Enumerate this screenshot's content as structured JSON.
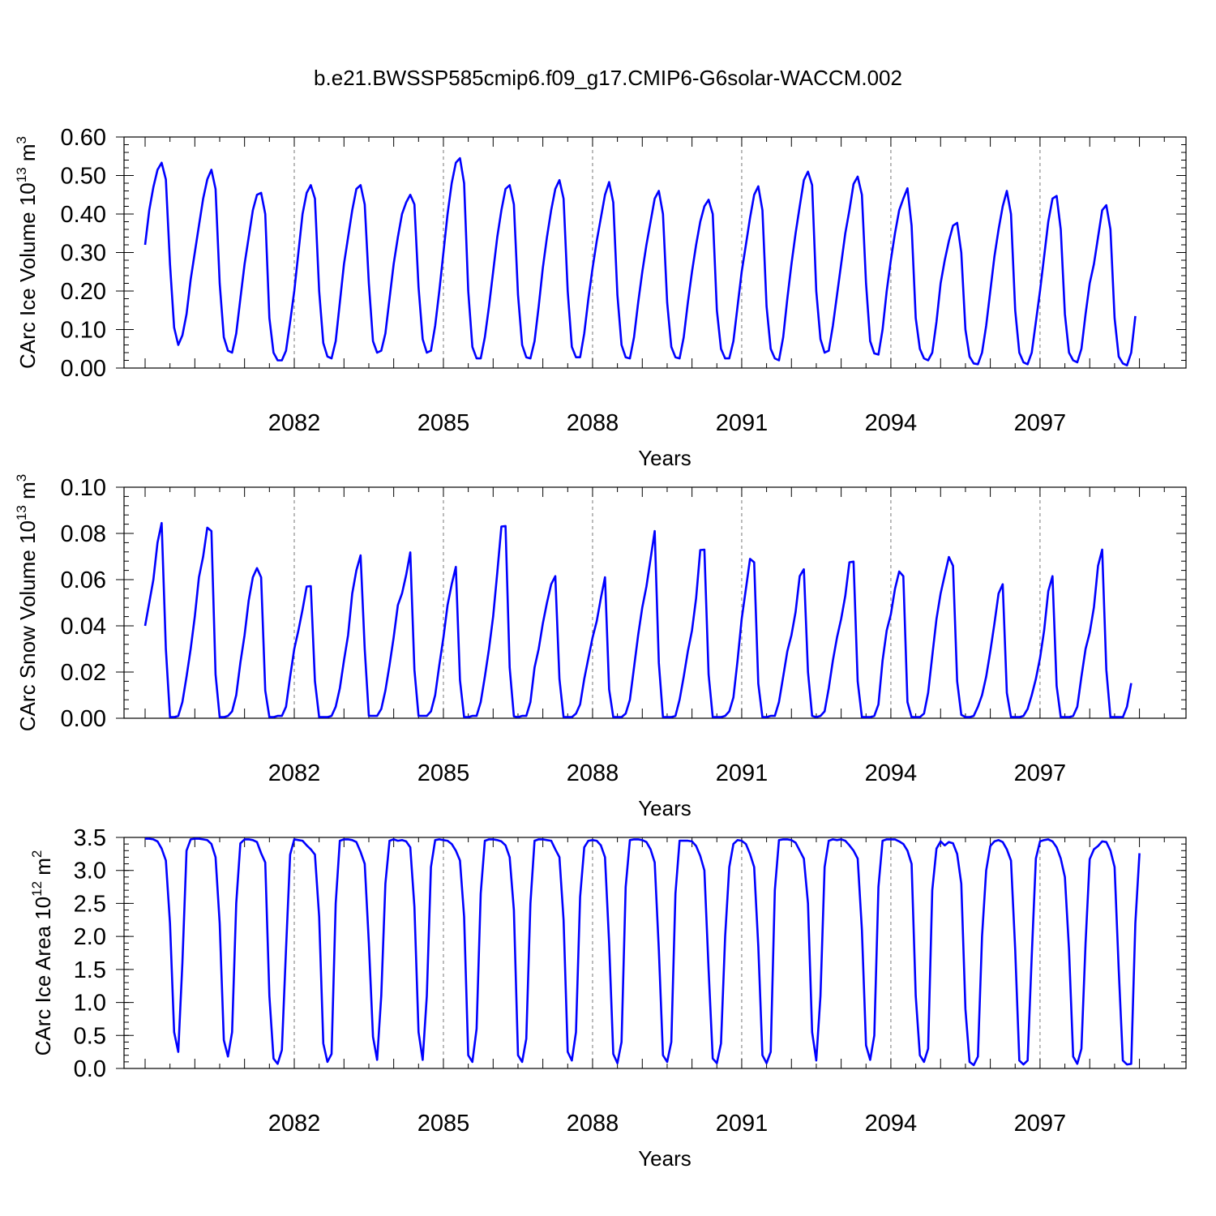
{
  "title": "b.e21.BWSSP585cmip6.f09_g17.CMIP6-G6solar-WACCM.002",
  "colors": {
    "line": "#0000ff",
    "axis": "#000000",
    "grid": "#777777"
  },
  "chart_data": [
    {
      "type": "line",
      "id": "ice-volume",
      "title": "",
      "xlabel": "Years",
      "ylabel": {
        "text": "CArc Ice Volume 10",
        "exponent": "13",
        "unit": " m",
        "unit_exponent": "3"
      },
      "xlim": [
        2079.0,
        2099.92
      ],
      "ylim": [
        0.0,
        0.6
      ],
      "x_ticks": [
        "2082",
        "2085",
        "2088",
        "2091",
        "2094",
        "2097"
      ],
      "x_tick_values": [
        2082,
        2085,
        2088,
        2091,
        2094,
        2097
      ],
      "y_ticks": [
        "0.00",
        "0.10",
        "0.20",
        "0.30",
        "0.40",
        "0.50",
        "0.60"
      ],
      "y_tick_values": [
        0.0,
        0.1,
        0.2,
        0.3,
        0.4,
        0.5,
        0.6
      ],
      "y_minor_step": 0.02,
      "x_start": 2079.0,
      "x_step": 0.0833333,
      "series": [
        {
          "name": "CArc Ice Volume",
          "values": [
            0.32,
            0.41,
            0.47,
            0.515,
            0.533,
            0.49,
            0.27,
            0.105,
            0.06,
            0.085,
            0.14,
            0.23,
            0.3,
            0.37,
            0.44,
            0.49,
            0.515,
            0.465,
            0.22,
            0.08,
            0.045,
            0.04,
            0.09,
            0.18,
            0.27,
            0.34,
            0.41,
            0.45,
            0.455,
            0.4,
            0.13,
            0.04,
            0.02,
            0.02,
            0.045,
            0.12,
            0.2,
            0.3,
            0.4,
            0.455,
            0.475,
            0.44,
            0.2,
            0.065,
            0.03,
            0.025,
            0.07,
            0.17,
            0.27,
            0.34,
            0.41,
            0.465,
            0.475,
            0.425,
            0.22,
            0.07,
            0.04,
            0.045,
            0.09,
            0.18,
            0.27,
            0.34,
            0.4,
            0.43,
            0.45,
            0.425,
            0.21,
            0.075,
            0.04,
            0.045,
            0.11,
            0.2,
            0.3,
            0.4,
            0.48,
            0.533,
            0.545,
            0.48,
            0.2,
            0.055,
            0.025,
            0.025,
            0.08,
            0.16,
            0.25,
            0.34,
            0.41,
            0.465,
            0.475,
            0.425,
            0.19,
            0.06,
            0.028,
            0.025,
            0.07,
            0.16,
            0.26,
            0.34,
            0.41,
            0.465,
            0.488,
            0.44,
            0.2,
            0.055,
            0.028,
            0.028,
            0.09,
            0.18,
            0.26,
            0.33,
            0.39,
            0.45,
            0.483,
            0.43,
            0.19,
            0.06,
            0.028,
            0.025,
            0.08,
            0.17,
            0.25,
            0.32,
            0.38,
            0.44,
            0.46,
            0.4,
            0.17,
            0.055,
            0.028,
            0.025,
            0.08,
            0.17,
            0.25,
            0.32,
            0.38,
            0.42,
            0.437,
            0.4,
            0.15,
            0.05,
            0.025,
            0.025,
            0.07,
            0.16,
            0.25,
            0.32,
            0.39,
            0.45,
            0.472,
            0.41,
            0.16,
            0.05,
            0.025,
            0.02,
            0.08,
            0.18,
            0.27,
            0.35,
            0.42,
            0.488,
            0.51,
            0.475,
            0.2,
            0.075,
            0.04,
            0.045,
            0.11,
            0.19,
            0.27,
            0.35,
            0.41,
            0.478,
            0.497,
            0.45,
            0.22,
            0.07,
            0.038,
            0.035,
            0.1,
            0.2,
            0.28,
            0.35,
            0.41,
            0.44,
            0.467,
            0.37,
            0.13,
            0.05,
            0.025,
            0.02,
            0.04,
            0.12,
            0.22,
            0.28,
            0.33,
            0.37,
            0.377,
            0.3,
            0.1,
            0.03,
            0.012,
            0.01,
            0.04,
            0.11,
            0.2,
            0.29,
            0.36,
            0.42,
            0.46,
            0.4,
            0.15,
            0.04,
            0.015,
            0.01,
            0.04,
            0.12,
            0.2,
            0.29,
            0.38,
            0.44,
            0.447,
            0.36,
            0.14,
            0.04,
            0.02,
            0.015,
            0.05,
            0.14,
            0.22,
            0.27,
            0.34,
            0.41,
            0.423,
            0.36,
            0.13,
            0.03,
            0.012,
            0.007,
            0.04,
            0.135
          ]
        }
      ]
    },
    {
      "type": "line",
      "id": "snow-volume",
      "title": "",
      "xlabel": "Years",
      "ylabel": {
        "text": "CArc Snow Volume 10",
        "exponent": "13",
        "unit": " m",
        "unit_exponent": "3"
      },
      "xlim": [
        2079.0,
        2099.92
      ],
      "ylim": [
        0.0,
        0.1
      ],
      "x_ticks": [
        "2082",
        "2085",
        "2088",
        "2091",
        "2094",
        "2097"
      ],
      "x_tick_values": [
        2082,
        2085,
        2088,
        2091,
        2094,
        2097
      ],
      "y_ticks": [
        "0.00",
        "0.02",
        "0.04",
        "0.06",
        "0.08",
        "0.10"
      ],
      "y_tick_values": [
        0.0,
        0.02,
        0.04,
        0.06,
        0.08,
        0.1
      ],
      "y_minor_step": 0.004,
      "x_start": 2079.0,
      "x_step": 0.0833333,
      "series": [
        {
          "name": "CArc Snow Volume",
          "values": [
            0.04,
            0.05,
            0.06,
            0.076,
            0.0845,
            0.03,
            0.0005,
            0.0005,
            0.001,
            0.007,
            0.018,
            0.03,
            0.044,
            0.061,
            0.07,
            0.0825,
            0.081,
            0.019,
            0.0005,
            0.0005,
            0.001,
            0.003,
            0.01,
            0.024,
            0.036,
            0.051,
            0.061,
            0.065,
            0.061,
            0.012,
            0.0005,
            0.0005,
            0.001,
            0.001,
            0.005,
            0.018,
            0.03,
            0.038,
            0.047,
            0.057,
            0.0572,
            0.016,
            0.0005,
            0.0005,
            0.0005,
            0.001,
            0.005,
            0.013,
            0.025,
            0.036,
            0.054,
            0.064,
            0.0705,
            0.03,
            0.001,
            0.001,
            0.001,
            0.004,
            0.012,
            0.023,
            0.035,
            0.049,
            0.054,
            0.062,
            0.0718,
            0.021,
            0.001,
            0.001,
            0.001,
            0.003,
            0.01,
            0.023,
            0.035,
            0.049,
            0.058,
            0.0655,
            0.0165,
            0.0005,
            0.0005,
            0.001,
            0.001,
            0.007,
            0.018,
            0.03,
            0.044,
            0.063,
            0.083,
            0.0832,
            0.022,
            0.0008,
            0.0005,
            0.001,
            0.001,
            0.007,
            0.022,
            0.03,
            0.041,
            0.05,
            0.058,
            0.0615,
            0.017,
            0.0005,
            0.0005,
            0.0005,
            0.002,
            0.006,
            0.017,
            0.026,
            0.035,
            0.042,
            0.052,
            0.061,
            0.0125,
            0.0005,
            0.0005,
            0.0005,
            0.002,
            0.008,
            0.022,
            0.036,
            0.048,
            0.057,
            0.069,
            0.081,
            0.024,
            0.0005,
            0.0005,
            0.0005,
            0.001,
            0.008,
            0.018,
            0.029,
            0.038,
            0.052,
            0.0728,
            0.073,
            0.019,
            0.0005,
            0.0005,
            0.0005,
            0.001,
            0.003,
            0.009,
            0.025,
            0.043,
            0.056,
            0.069,
            0.0675,
            0.015,
            0.0005,
            0.0005,
            0.001,
            0.001,
            0.007,
            0.018,
            0.029,
            0.036,
            0.046,
            0.0615,
            0.0645,
            0.02,
            0.001,
            0.0005,
            0.001,
            0.003,
            0.013,
            0.025,
            0.035,
            0.043,
            0.053,
            0.0675,
            0.0678,
            0.016,
            0.0005,
            0.0005,
            0.0005,
            0.001,
            0.006,
            0.025,
            0.038,
            0.045,
            0.056,
            0.0635,
            0.0615,
            0.007,
            0.0005,
            0.0005,
            0.0005,
            0.002,
            0.011,
            0.027,
            0.043,
            0.054,
            0.062,
            0.0698,
            0.066,
            0.016,
            0.0015,
            0.0005,
            0.0005,
            0.001,
            0.005,
            0.01,
            0.018,
            0.029,
            0.041,
            0.054,
            0.058,
            0.011,
            0.0005,
            0.0005,
            0.0005,
            0.001,
            0.004,
            0.01,
            0.017,
            0.026,
            0.038,
            0.055,
            0.0615,
            0.014,
            0.0005,
            0.0005,
            0.0005,
            0.001,
            0.005,
            0.018,
            0.03,
            0.037,
            0.048,
            0.066,
            0.073,
            0.021,
            0.0005,
            0.0005,
            0.0005,
            0.0005,
            0.005,
            0.0152
          ]
        }
      ]
    },
    {
      "type": "line",
      "id": "ice-area",
      "title": "",
      "xlabel": "Years",
      "ylabel": {
        "text": "CArc Ice Area 10",
        "exponent": "12",
        "unit": " m",
        "unit_exponent": "2"
      },
      "xlim": [
        2079.0,
        2099.92
      ],
      "ylim": [
        0.0,
        3.5
      ],
      "x_ticks": [
        "2082",
        "2085",
        "2088",
        "2091",
        "2094",
        "2097"
      ],
      "x_tick_values": [
        2082,
        2085,
        2088,
        2091,
        2094,
        2097
      ],
      "y_ticks": [
        "0.0",
        "0.5",
        "1.0",
        "1.5",
        "2.0",
        "2.5",
        "3.0",
        "3.5"
      ],
      "y_tick_values": [
        0.0,
        0.5,
        1.0,
        1.5,
        2.0,
        2.5,
        3.0,
        3.5
      ],
      "y_minor_step": 0.1,
      "x_start": 2079.0,
      "x_step": 0.0833333,
      "series": [
        {
          "name": "CArc Ice Area",
          "values": [
            3.48,
            3.48,
            3.47,
            3.44,
            3.33,
            3.15,
            2.2,
            0.55,
            0.25,
            1.6,
            3.3,
            3.47,
            3.48,
            3.48,
            3.47,
            3.46,
            3.4,
            3.2,
            2.2,
            0.43,
            0.18,
            0.55,
            2.5,
            3.41,
            3.47,
            3.47,
            3.46,
            3.43,
            3.26,
            3.12,
            1.1,
            0.15,
            0.07,
            0.28,
            1.8,
            3.24,
            3.47,
            3.46,
            3.45,
            3.38,
            3.32,
            3.24,
            2.3,
            0.38,
            0.1,
            0.22,
            2.5,
            3.45,
            3.47,
            3.47,
            3.46,
            3.43,
            3.28,
            3.1,
            1.9,
            0.48,
            0.13,
            1.1,
            2.8,
            3.45,
            3.47,
            3.45,
            3.46,
            3.44,
            3.35,
            2.45,
            0.55,
            0.13,
            1.1,
            3.05,
            3.46,
            3.47,
            3.46,
            3.45,
            3.4,
            3.3,
            3.15,
            2.3,
            0.2,
            0.1,
            0.6,
            2.65,
            3.45,
            3.47,
            3.47,
            3.46,
            3.44,
            3.38,
            3.2,
            2.4,
            0.2,
            0.1,
            0.45,
            2.5,
            3.45,
            3.47,
            3.47,
            3.46,
            3.45,
            3.32,
            3.2,
            2.25,
            0.25,
            0.12,
            0.55,
            2.6,
            3.35,
            3.45,
            3.46,
            3.45,
            3.38,
            3.2,
            1.9,
            0.22,
            0.08,
            0.4,
            2.75,
            3.46,
            3.47,
            3.47,
            3.46,
            3.43,
            3.32,
            3.12,
            1.8,
            0.2,
            0.1,
            0.4,
            2.65,
            3.45,
            3.45,
            3.45,
            3.44,
            3.37,
            3.22,
            3.0,
            1.5,
            0.15,
            0.08,
            0.38,
            2.0,
            3.05,
            3.4,
            3.46,
            3.45,
            3.4,
            3.25,
            3.05,
            1.85,
            0.2,
            0.08,
            0.25,
            2.7,
            3.46,
            3.47,
            3.47,
            3.46,
            3.42,
            3.3,
            3.18,
            2.5,
            0.55,
            0.12,
            1.1,
            3.05,
            3.45,
            3.47,
            3.46,
            3.47,
            3.45,
            3.38,
            3.3,
            3.18,
            2.1,
            0.35,
            0.13,
            0.5,
            2.75,
            3.45,
            3.47,
            3.47,
            3.47,
            3.44,
            3.4,
            3.3,
            3.1,
            1.1,
            0.2,
            0.1,
            0.3,
            2.7,
            3.33,
            3.44,
            3.38,
            3.43,
            3.41,
            3.25,
            2.8,
            0.9,
            0.1,
            0.05,
            0.18,
            2.0,
            3.0,
            3.37,
            3.44,
            3.46,
            3.43,
            3.32,
            3.15,
            1.8,
            0.12,
            0.06,
            0.12,
            1.7,
            3.18,
            3.44,
            3.46,
            3.47,
            3.44,
            3.35,
            3.18,
            2.9,
            1.8,
            0.18,
            0.07,
            0.3,
            1.9,
            3.17,
            3.32,
            3.37,
            3.44,
            3.43,
            3.3,
            3.05,
            1.5,
            0.12,
            0.06,
            0.07,
            2.2,
            3.26
          ]
        }
      ]
    }
  ]
}
